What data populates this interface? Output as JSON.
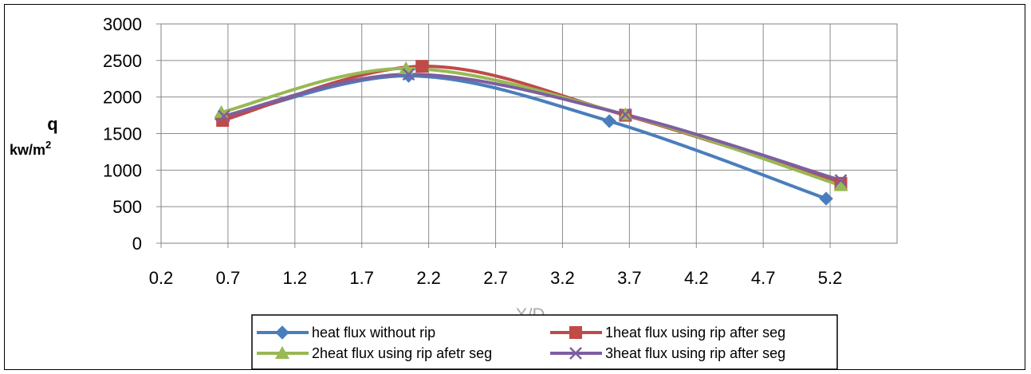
{
  "chart_data": {
    "type": "line",
    "ylabel_main": "q",
    "ylabel_unit": "kw/m",
    "ylabel_sup": "2",
    "xlabel": "X/D",
    "xlim": [
      0.2,
      5.7
    ],
    "ylim": [
      0,
      3000
    ],
    "x_ticks": [
      "0.2",
      "0.7",
      "1.2",
      "1.7",
      "2.2",
      "2.7",
      "3.2",
      "3.7",
      "4.2",
      "4.7",
      "5.2"
    ],
    "y_ticks": [
      "0",
      "500",
      "1000",
      "1500",
      "2000",
      "2500",
      "3000"
    ],
    "grid": true,
    "legend_position": "bottom",
    "series": [
      {
        "name": "heat flux without rip",
        "color": "#4a7ebb",
        "marker": "diamond",
        "x": [
          0.65,
          2.05,
          3.55,
          5.17
        ],
        "y": [
          1700,
          2290,
          1670,
          610
        ]
      },
      {
        "name": "1heat flux using rip after seg",
        "color": "#be4b48",
        "marker": "square",
        "x": [
          0.66,
          2.15,
          3.67,
          5.28
        ],
        "y": [
          1680,
          2420,
          1750,
          820
        ]
      },
      {
        "name": "2heat flux using rip afetr seg",
        "color": "#98b954",
        "marker": "triangle",
        "x": [
          0.65,
          2.03,
          3.67,
          5.28
        ],
        "y": [
          1790,
          2390,
          1760,
          790
        ]
      },
      {
        "name": "3heat flux using rip after seg",
        "color": "#7d5fa0",
        "marker": "x",
        "x": [
          0.67,
          2.05,
          3.67,
          5.28
        ],
        "y": [
          1740,
          2310,
          1760,
          860
        ]
      }
    ]
  }
}
